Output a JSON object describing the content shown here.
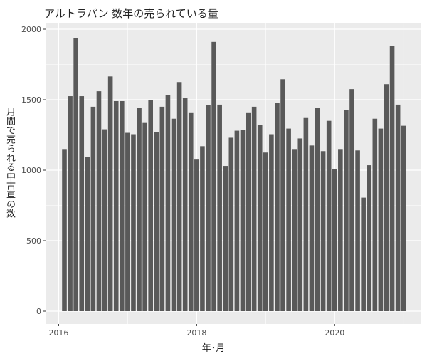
{
  "chart_data": {
    "type": "bar",
    "title": "アルトラパン 数年の売られている量",
    "xlabel": "年･月",
    "ylabel": "月間で売られる中古車の数",
    "ylim": [
      0,
      2000
    ],
    "yticks": [
      0,
      500,
      1000,
      1500,
      2000
    ],
    "xticks": [
      "2016",
      "2018",
      "2020"
    ],
    "grid": true,
    "bar_color": "#595959",
    "panel_color": "#ebebeb",
    "x_start": "2016-02",
    "categories": [
      "2016-02",
      "2016-03",
      "2016-04",
      "2016-05",
      "2016-06",
      "2016-07",
      "2016-08",
      "2016-09",
      "2016-10",
      "2016-11",
      "2016-12",
      "2017-01",
      "2017-02",
      "2017-03",
      "2017-04",
      "2017-05",
      "2017-06",
      "2017-07",
      "2017-08",
      "2017-09",
      "2017-10",
      "2017-11",
      "2017-12",
      "2018-01",
      "2018-02",
      "2018-03",
      "2018-04",
      "2018-05",
      "2018-06",
      "2018-07",
      "2018-08",
      "2018-09",
      "2018-10",
      "2018-11",
      "2018-12",
      "2019-01",
      "2019-02",
      "2019-03",
      "2019-04",
      "2019-05",
      "2019-06",
      "2019-07",
      "2019-08",
      "2019-09",
      "2019-10",
      "2019-11",
      "2019-12",
      "2020-01",
      "2020-02",
      "2020-03",
      "2020-04",
      "2020-05",
      "2020-06",
      "2020-07",
      "2020-08",
      "2020-09",
      "2020-10",
      "2020-11",
      "2020-12",
      "2021-01"
    ],
    "values": [
      1150,
      1525,
      1935,
      1525,
      1095,
      1450,
      1560,
      1290,
      1665,
      1490,
      1490,
      1265,
      1255,
      1440,
      1335,
      1495,
      1270,
      1450,
      1535,
      1365,
      1625,
      1510,
      1405,
      1075,
      1170,
      1460,
      1910,
      1465,
      1030,
      1230,
      1280,
      1285,
      1405,
      1450,
      1320,
      1125,
      1255,
      1475,
      1645,
      1295,
      1150,
      1225,
      1370,
      1175,
      1440,
      1135,
      1350,
      1010,
      1150,
      1425,
      1575,
      1140,
      805,
      1035,
      1365,
      1295,
      1610,
      1880,
      1465,
      1315
    ]
  }
}
